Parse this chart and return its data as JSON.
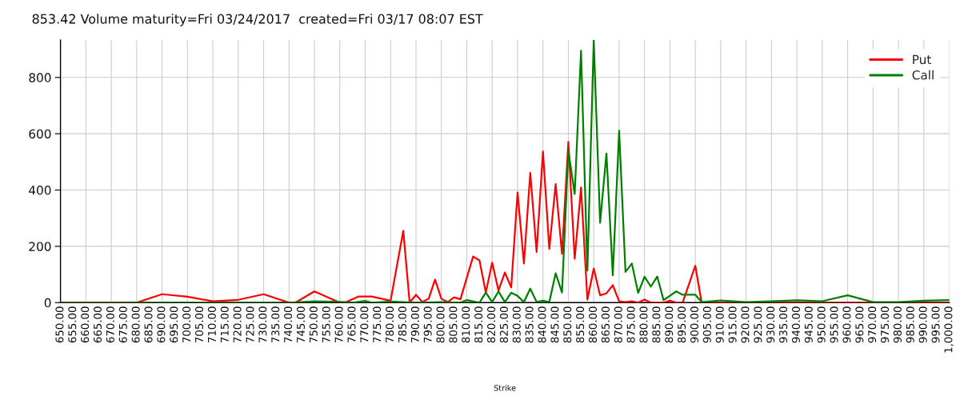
{
  "chart_data": {
    "type": "line",
    "title": "853.42 Volume maturity=Fri 03/24/2017  created=Fri 03/17 08:07 EST",
    "xlabel": "Strike",
    "xlim": [
      650,
      1000
    ],
    "xticks": [
      {
        "value": 650,
        "label": "650.00"
      },
      {
        "value": 655,
        "label": "655.00"
      },
      {
        "value": 660,
        "label": "660.00"
      },
      {
        "value": 665,
        "label": "665.00"
      },
      {
        "value": 670,
        "label": "670.00"
      },
      {
        "value": 675,
        "label": "675.00"
      },
      {
        "value": 680,
        "label": "680.00"
      },
      {
        "value": 685,
        "label": "685.00"
      },
      {
        "value": 690,
        "label": "690.00"
      },
      {
        "value": 695,
        "label": "695.00"
      },
      {
        "value": 700,
        "label": "700.00"
      },
      {
        "value": 705,
        "label": "705.00"
      },
      {
        "value": 710,
        "label": "710.00"
      },
      {
        "value": 715,
        "label": "715.00"
      },
      {
        "value": 720,
        "label": "720.00"
      },
      {
        "value": 725,
        "label": "725.00"
      },
      {
        "value": 730,
        "label": "730.00"
      },
      {
        "value": 735,
        "label": "735.00"
      },
      {
        "value": 740,
        "label": "740.00"
      },
      {
        "value": 745,
        "label": "745.00"
      },
      {
        "value": 750,
        "label": "750.00"
      },
      {
        "value": 755,
        "label": "755.00"
      },
      {
        "value": 760,
        "label": "760.00"
      },
      {
        "value": 765,
        "label": "765.00"
      },
      {
        "value": 770,
        "label": "770.00"
      },
      {
        "value": 775,
        "label": "775.00"
      },
      {
        "value": 780,
        "label": "780.00"
      },
      {
        "value": 785,
        "label": "785.00"
      },
      {
        "value": 790,
        "label": "790.00"
      },
      {
        "value": 795,
        "label": "795.00"
      },
      {
        "value": 800,
        "label": "800.00"
      },
      {
        "value": 805,
        "label": "805.00"
      },
      {
        "value": 810,
        "label": "810.00"
      },
      {
        "value": 815,
        "label": "815.00"
      },
      {
        "value": 820,
        "label": "820.00"
      },
      {
        "value": 825,
        "label": "825.00"
      },
      {
        "value": 830,
        "label": "830.00"
      },
      {
        "value": 835,
        "label": "835.00"
      },
      {
        "value": 840,
        "label": "840.00"
      },
      {
        "value": 845,
        "label": "845.00"
      },
      {
        "value": 850,
        "label": "850.00"
      },
      {
        "value": 855,
        "label": "855.00"
      },
      {
        "value": 860,
        "label": "860.00"
      },
      {
        "value": 865,
        "label": "865.00"
      },
      {
        "value": 870,
        "label": "870.00"
      },
      {
        "value": 875,
        "label": "875.00"
      },
      {
        "value": 880,
        "label": "880.00"
      },
      {
        "value": 885,
        "label": "885.00"
      },
      {
        "value": 890,
        "label": "890.00"
      },
      {
        "value": 895,
        "label": "895.00"
      },
      {
        "value": 900,
        "label": "900.00"
      },
      {
        "value": 905,
        "label": "905.00"
      },
      {
        "value": 910,
        "label": "910.00"
      },
      {
        "value": 915,
        "label": "915.00"
      },
      {
        "value": 920,
        "label": "920.00"
      },
      {
        "value": 925,
        "label": "925.00"
      },
      {
        "value": 930,
        "label": "930.00"
      },
      {
        "value": 935,
        "label": "935.00"
      },
      {
        "value": 940,
        "label": "940.00"
      },
      {
        "value": 945,
        "label": "945.00"
      },
      {
        "value": 950,
        "label": "950.00"
      },
      {
        "value": 955,
        "label": "955.00"
      },
      {
        "value": 960,
        "label": "960.00"
      },
      {
        "value": 965,
        "label": "965.00"
      },
      {
        "value": 970,
        "label": "970.00"
      },
      {
        "value": 975,
        "label": "975.00"
      },
      {
        "value": 980,
        "label": "980.00"
      },
      {
        "value": 985,
        "label": "985.00"
      },
      {
        "value": 990,
        "label": "990.00"
      },
      {
        "value": 995,
        "label": "995.00"
      },
      {
        "value": 1000,
        "label": "1,000.00"
      }
    ],
    "ylim": [
      0,
      933
    ],
    "yticks": [
      0,
      200,
      400,
      600,
      800
    ],
    "grid": true,
    "legend": "top right",
    "series": [
      {
        "name": "Put",
        "color": "#ff0000",
        "x": [
          650,
          680,
          690,
          700,
          710,
          720,
          730,
          740,
          742.5,
          750,
          760,
          762.5,
          767.5,
          772.5,
          780,
          785,
          787.5,
          790,
          792.5,
          795,
          797.5,
          800,
          802.5,
          805,
          807.5,
          812.5,
          815,
          817.5,
          820,
          822.5,
          825,
          827.5,
          830,
          832.5,
          835,
          837.5,
          840,
          842.5,
          845,
          847.5,
          850,
          852.5,
          855,
          857.5,
          860,
          862.5,
          865,
          867.5,
          870,
          872.5,
          875,
          877.5,
          880,
          882.5,
          887.5,
          890,
          892.5,
          895,
          900,
          902.5,
          1000
        ],
        "values": [
          0,
          0,
          30,
          21,
          5,
          10,
          30,
          0,
          0,
          40,
          0,
          2,
          22,
          22,
          7,
          255,
          0,
          28,
          2,
          14,
          82,
          14,
          2,
          19,
          12,
          164,
          150,
          36,
          142,
          43,
          107,
          54,
          391,
          139,
          461,
          180,
          537,
          191,
          421,
          173,
          571,
          156,
          409,
          11,
          121,
          26,
          33,
          62,
          5,
          2,
          5,
          0,
          11,
          0,
          0,
          7,
          0,
          0,
          131,
          0,
          0
        ]
      },
      {
        "name": "Call",
        "color": "#008000",
        "x": [
          650,
          740,
          750,
          760,
          765,
          770,
          772.5,
          780,
          790,
          800,
          807.5,
          810,
          815,
          817.5,
          820,
          822.5,
          825,
          827.5,
          830,
          832.5,
          835,
          837.5,
          840,
          842.5,
          845,
          847.5,
          850,
          852.5,
          855,
          857.5,
          860,
          862.5,
          865,
          867.5,
          870,
          872.5,
          875,
          877.5,
          880,
          882.5,
          885,
          887.5,
          892.5,
          895,
          900,
          902.5,
          910,
          920,
          930,
          940,
          950,
          960,
          970,
          980,
          990,
          1000
        ],
        "values": [
          0,
          0,
          5,
          3,
          0,
          6,
          0,
          4,
          0,
          2,
          0,
          9,
          0,
          36,
          2,
          40,
          2,
          35,
          24,
          2,
          50,
          2,
          7,
          2,
          104,
          36,
          540,
          386,
          895,
          114,
          933,
          284,
          530,
          97,
          611,
          109,
          139,
          35,
          92,
          57,
          93,
          9,
          40,
          28,
          28,
          2,
          8,
          2,
          5,
          8,
          5,
          26,
          2,
          2,
          7,
          9
        ]
      }
    ]
  }
}
